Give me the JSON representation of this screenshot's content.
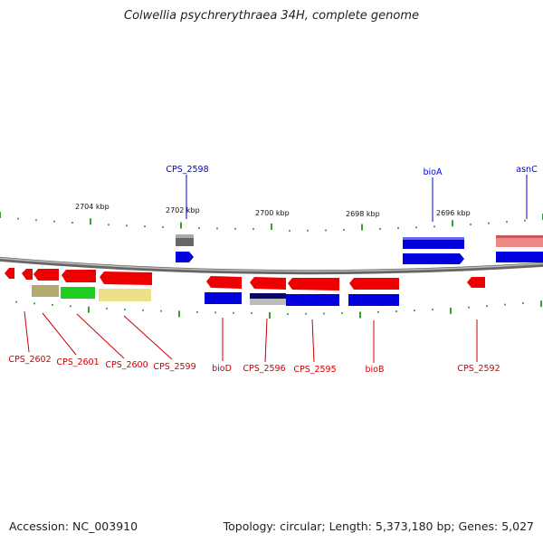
{
  "title": "Colwellia psychrerythraea 34H, complete genome",
  "footer": {
    "accession": "Accession: NC_003910",
    "summary": "Topology: circular; Length: 5,373,180 bp; Genes: 5,027"
  },
  "ruler_ticks": [
    "2704 kbp",
    "2702 kbp",
    "2700 kbp",
    "2698 kbp",
    "2696 kbp"
  ],
  "colors": {
    "backbone": "#8a8a8a",
    "forward_gene": "#0000dd",
    "reverse_gene": "#ee0000",
    "tick": "#008800",
    "forward_label": "#0000cc",
    "reverse_label": "#cc0000"
  },
  "forward_labels": [
    "CPS_2598",
    "bioA",
    "asnC"
  ],
  "reverse_labels": [
    "CPS_2602",
    "CPS_2601",
    "CPS_2600",
    "CPS_2599",
    "bioD",
    "CPS_2596",
    "CPS_2595",
    "bioB",
    "CPS_2592"
  ]
}
